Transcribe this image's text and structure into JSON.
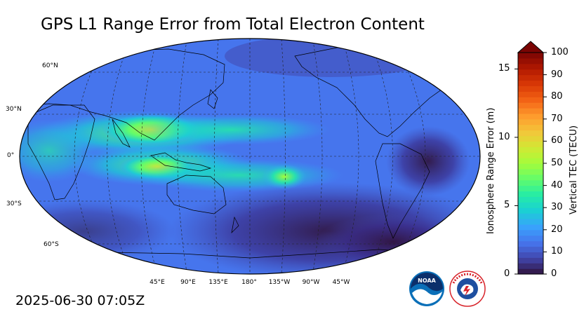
{
  "title": "GPS L1 Range Error from Total Electron Content",
  "timestamp": "2025-06-30 07:05Z",
  "map": {
    "projection": "robinson",
    "central_longitude": "180",
    "lat_labels": [
      "60°N",
      "30°N",
      "0°",
      "30°S",
      "60°S"
    ],
    "lon_labels": [
      "45°E",
      "90°E",
      "135°E",
      "180°",
      "135°W",
      "90°W",
      "45°W"
    ]
  },
  "colorbar": {
    "left_axis_label": "Ionosphere Range Error (m)",
    "left_ticks": [
      "0",
      "5",
      "10",
      "15"
    ],
    "right_axis_label": "Vertical TEC (TECU)",
    "right_ticks": [
      "0",
      "10",
      "20",
      "30",
      "40",
      "50",
      "60",
      "70",
      "80",
      "90",
      "100"
    ],
    "range_tecu": [
      0,
      100
    ],
    "range_m": [
      0,
      16.2
    ],
    "extend": "max",
    "colors": [
      "#30123b",
      "#4145ab",
      "#4675ed",
      "#39a2fc",
      "#1bcfd4",
      "#24eca6",
      "#61fc6c",
      "#a4fc3b",
      "#d1e834",
      "#f3c63a",
      "#fe9b2d",
      "#f36315",
      "#d93806",
      "#b11901",
      "#7a0403"
    ]
  },
  "logos": {
    "noaa_text": "NOAA",
    "nws_text": "NATIONAL WEATHER SERVICE"
  }
}
